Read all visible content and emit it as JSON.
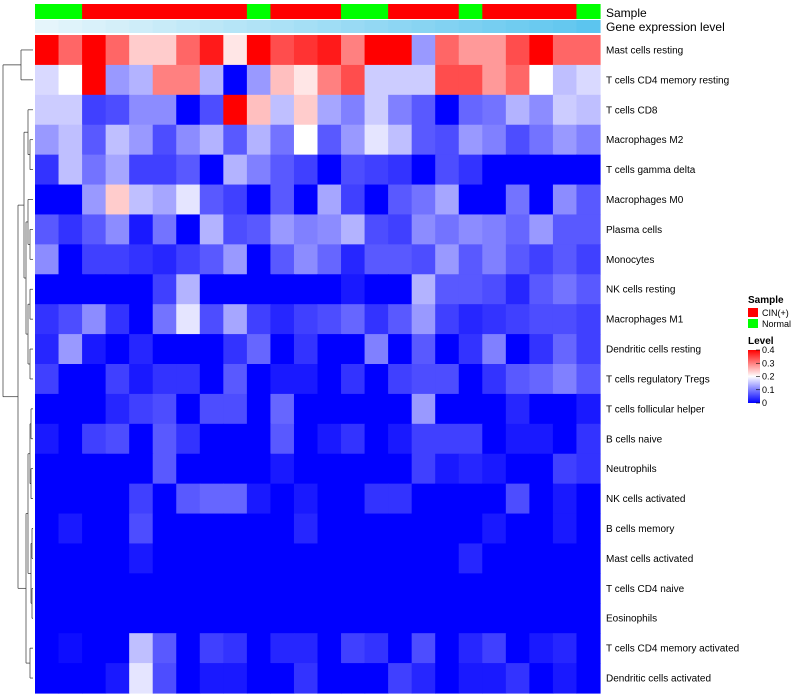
{
  "chart_data": {
    "type": "heatmap",
    "title": "",
    "column_annotations": [
      {
        "name": "Sample",
        "key": "sample_groups"
      },
      {
        "name": "Gene expression level",
        "key": "gene_expression_level"
      }
    ],
    "sample_groups": [
      "Normal",
      "Normal",
      "CIN(+)",
      "CIN(+)",
      "CIN(+)",
      "CIN(+)",
      "CIN(+)",
      "CIN(+)",
      "CIN(+)",
      "Normal",
      "CIN(+)",
      "CIN(+)",
      "CIN(+)",
      "Normal",
      "Normal",
      "CIN(+)",
      "CIN(+)",
      "CIN(+)",
      "Normal",
      "CIN(+)",
      "CIN(+)",
      "CIN(+)",
      "CIN(+)",
      "Normal"
    ],
    "gene_expression_level": [
      0.02,
      0.06,
      0.1,
      0.14,
      0.18,
      0.22,
      0.26,
      0.3,
      0.34,
      0.38,
      0.42,
      0.46,
      0.5,
      0.54,
      0.58,
      0.62,
      0.66,
      0.7,
      0.74,
      0.78,
      0.82,
      0.86,
      0.9,
      0.96
    ],
    "rows": [
      "Mast cells resting",
      "T cells CD4 memory resting",
      "T cells CD8",
      "Macrophages M2",
      "T cells gamma delta",
      "Macrophages M0",
      "Plasma cells",
      "Monocytes",
      "NK cells resting",
      "Macrophages M1",
      "Dendritic cells resting",
      "T cells regulatory  Tregs",
      "T cells follicular helper",
      "B cells naive",
      "Neutrophils",
      "NK cells activated",
      "B cells memory",
      "Mast cells activated",
      "T cells CD4 naive",
      "Eosinophils",
      "T cells CD4 memory activated",
      "Dendritic cells activated"
    ],
    "values": [
      [
        0.4,
        0.32,
        0.4,
        0.32,
        0.24,
        0.24,
        0.32,
        0.38,
        0.22,
        0.4,
        0.34,
        0.36,
        0.38,
        0.3,
        0.4,
        0.4,
        0.12,
        0.32,
        0.28,
        0.28,
        0.34,
        0.4,
        0.32,
        0.32
      ],
      [
        0.17,
        0.2,
        0.4,
        0.12,
        0.14,
        0.3,
        0.3,
        0.14,
        0.0,
        0.12,
        0.25,
        0.22,
        0.3,
        0.34,
        0.16,
        0.16,
        0.16,
        0.34,
        0.34,
        0.28,
        0.32,
        0.2,
        0.15,
        0.17
      ],
      [
        0.16,
        0.16,
        0.05,
        0.06,
        0.11,
        0.11,
        0.0,
        0.06,
        0.4,
        0.25,
        0.15,
        0.24,
        0.13,
        0.1,
        0.16,
        0.1,
        0.07,
        0.0,
        0.08,
        0.09,
        0.14,
        0.11,
        0.16,
        0.15
      ],
      [
        0.12,
        0.15,
        0.07,
        0.15,
        0.12,
        0.06,
        0.11,
        0.14,
        0.07,
        0.14,
        0.09,
        0.2,
        0.07,
        0.12,
        0.18,
        0.15,
        0.07,
        0.06,
        0.12,
        0.1,
        0.06,
        0.09,
        0.12,
        0.1
      ],
      [
        0.04,
        0.15,
        0.09,
        0.13,
        0.05,
        0.05,
        0.07,
        0.0,
        0.14,
        0.1,
        0.07,
        0.05,
        0.0,
        0.06,
        0.05,
        0.04,
        0.0,
        0.06,
        0.04,
        0.0,
        0.0,
        0.0,
        0.0,
        0.0
      ],
      [
        0.0,
        0.0,
        0.12,
        0.24,
        0.15,
        0.13,
        0.18,
        0.07,
        0.05,
        0.0,
        0.07,
        0.0,
        0.13,
        0.05,
        0.0,
        0.07,
        0.09,
        0.13,
        0.0,
        0.0,
        0.09,
        0.0,
        0.11,
        0.07
      ],
      [
        0.07,
        0.04,
        0.07,
        0.11,
        0.02,
        0.09,
        0.0,
        0.14,
        0.06,
        0.07,
        0.12,
        0.1,
        0.11,
        0.14,
        0.06,
        0.05,
        0.11,
        0.09,
        0.11,
        0.1,
        0.08,
        0.12,
        0.07,
        0.07
      ],
      [
        0.11,
        0.0,
        0.05,
        0.05,
        0.04,
        0.03,
        0.05,
        0.07,
        0.12,
        0.0,
        0.07,
        0.11,
        0.08,
        0.03,
        0.07,
        0.07,
        0.06,
        0.12,
        0.07,
        0.1,
        0.07,
        0.05,
        0.07,
        0.05
      ],
      [
        0.0,
        0.0,
        0.0,
        0.0,
        0.0,
        0.05,
        0.14,
        0.0,
        0.0,
        0.0,
        0.0,
        0.0,
        0.0,
        0.02,
        0.0,
        0.0,
        0.14,
        0.07,
        0.07,
        0.06,
        0.03,
        0.07,
        0.09,
        0.07
      ],
      [
        0.04,
        0.06,
        0.11,
        0.04,
        0.0,
        0.09,
        0.18,
        0.06,
        0.13,
        0.05,
        0.03,
        0.05,
        0.06,
        0.08,
        0.04,
        0.07,
        0.12,
        0.05,
        0.03,
        0.04,
        0.05,
        0.06,
        0.06,
        0.05
      ],
      [
        0.03,
        0.12,
        0.02,
        0.0,
        0.03,
        0.0,
        0.0,
        0.0,
        0.04,
        0.08,
        0.0,
        0.04,
        0.0,
        0.0,
        0.1,
        0.0,
        0.07,
        0.0,
        0.04,
        0.1,
        0.0,
        0.04,
        0.08,
        0.05
      ],
      [
        0.05,
        0.0,
        0.0,
        0.05,
        0.02,
        0.04,
        0.04,
        0.0,
        0.07,
        0.0,
        0.02,
        0.02,
        0.0,
        0.04,
        0.0,
        0.05,
        0.06,
        0.06,
        0.0,
        0.04,
        0.07,
        0.08,
        0.1,
        0.07
      ],
      [
        0.0,
        0.0,
        0.0,
        0.03,
        0.05,
        0.06,
        0.0,
        0.06,
        0.06,
        0.0,
        0.08,
        0.0,
        0.0,
        0.0,
        0.0,
        0.0,
        0.12,
        0.0,
        0.0,
        0.0,
        0.03,
        0.0,
        0.0,
        0.02
      ],
      [
        0.02,
        0.0,
        0.05,
        0.06,
        0.0,
        0.07,
        0.04,
        0.0,
        0.0,
        0.0,
        0.07,
        0.0,
        0.02,
        0.04,
        0.0,
        0.02,
        0.05,
        0.05,
        0.05,
        0.0,
        0.02,
        0.02,
        0.0,
        0.04
      ],
      [
        0.0,
        0.0,
        0.0,
        0.0,
        0.0,
        0.07,
        0.0,
        0.0,
        0.0,
        0.0,
        0.02,
        0.0,
        0.0,
        0.0,
        0.0,
        0.0,
        0.05,
        0.02,
        0.03,
        0.02,
        0.0,
        0.0,
        0.05,
        0.04
      ],
      [
        0.0,
        0.0,
        0.0,
        0.0,
        0.05,
        0.0,
        0.07,
        0.08,
        0.08,
        0.02,
        0.0,
        0.02,
        0.0,
        0.0,
        0.04,
        0.04,
        0.0,
        0.0,
        0.0,
        0.0,
        0.06,
        0.0,
        0.02,
        0.0
      ],
      [
        0.0,
        0.02,
        0.0,
        0.0,
        0.06,
        0.0,
        0.0,
        0.0,
        0.0,
        0.0,
        0.0,
        0.03,
        0.0,
        0.0,
        0.0,
        0.0,
        0.0,
        0.0,
        0.0,
        0.02,
        0.0,
        0.0,
        0.02,
        0.0
      ],
      [
        0.0,
        0.0,
        0.0,
        0.0,
        0.02,
        0.0,
        0.0,
        0.0,
        0.0,
        0.0,
        0.0,
        0.0,
        0.0,
        0.0,
        0.0,
        0.0,
        0.0,
        0.0,
        0.03,
        0.0,
        0.0,
        0.0,
        0.0,
        0.0
      ],
      [
        0.0,
        0.0,
        0.0,
        0.0,
        0.0,
        0.0,
        0.0,
        0.0,
        0.0,
        0.0,
        0.0,
        0.0,
        0.0,
        0.0,
        0.0,
        0.0,
        0.0,
        0.0,
        0.0,
        0.0,
        0.0,
        0.0,
        0.0,
        0.0
      ],
      [
        0.0,
        0.0,
        0.0,
        0.0,
        0.0,
        0.0,
        0.0,
        0.0,
        0.0,
        0.0,
        0.0,
        0.0,
        0.0,
        0.0,
        0.0,
        0.0,
        0.0,
        0.0,
        0.0,
        0.0,
        0.0,
        0.0,
        0.0,
        0.0
      ],
      [
        0.0,
        0.01,
        0.0,
        0.0,
        0.15,
        0.07,
        0.0,
        0.05,
        0.04,
        0.0,
        0.03,
        0.03,
        0.0,
        0.05,
        0.04,
        0.0,
        0.06,
        0.0,
        0.03,
        0.05,
        0.0,
        0.02,
        0.03,
        0.0
      ],
      [
        0.0,
        0.0,
        0.0,
        0.02,
        0.18,
        0.06,
        0.0,
        0.02,
        0.02,
        0.0,
        0.0,
        0.04,
        0.0,
        0.0,
        0.0,
        0.05,
        0.03,
        0.0,
        0.02,
        0.02,
        0.04,
        0.0,
        0.02,
        0.0
      ]
    ],
    "scale": {
      "min": 0,
      "max": 0.4,
      "low_color": "#0000ff",
      "mid_color": "#ffffff",
      "high_color": "#ff0000"
    },
    "legend": {
      "position": "right",
      "sample_title": "Sample",
      "sample_items": [
        {
          "label": "CIN(+)",
          "color": "#ff0000"
        },
        {
          "label": "Normal",
          "color": "#00ff00"
        }
      ],
      "level_title": "Level",
      "level_ticks": [
        "0.4",
        "0.3",
        "0.2",
        "0.1",
        "0"
      ],
      "level_tick_values": [
        0.4,
        0.3,
        0.2,
        0.1,
        0
      ]
    },
    "annotation_colors": {
      "CIN(+)": "#ff0000",
      "Normal": "#00ff00",
      "expression_low": "#e8f6fb",
      "expression_high": "#56c3ee"
    },
    "row_dendrogram": "present",
    "grid": false
  }
}
